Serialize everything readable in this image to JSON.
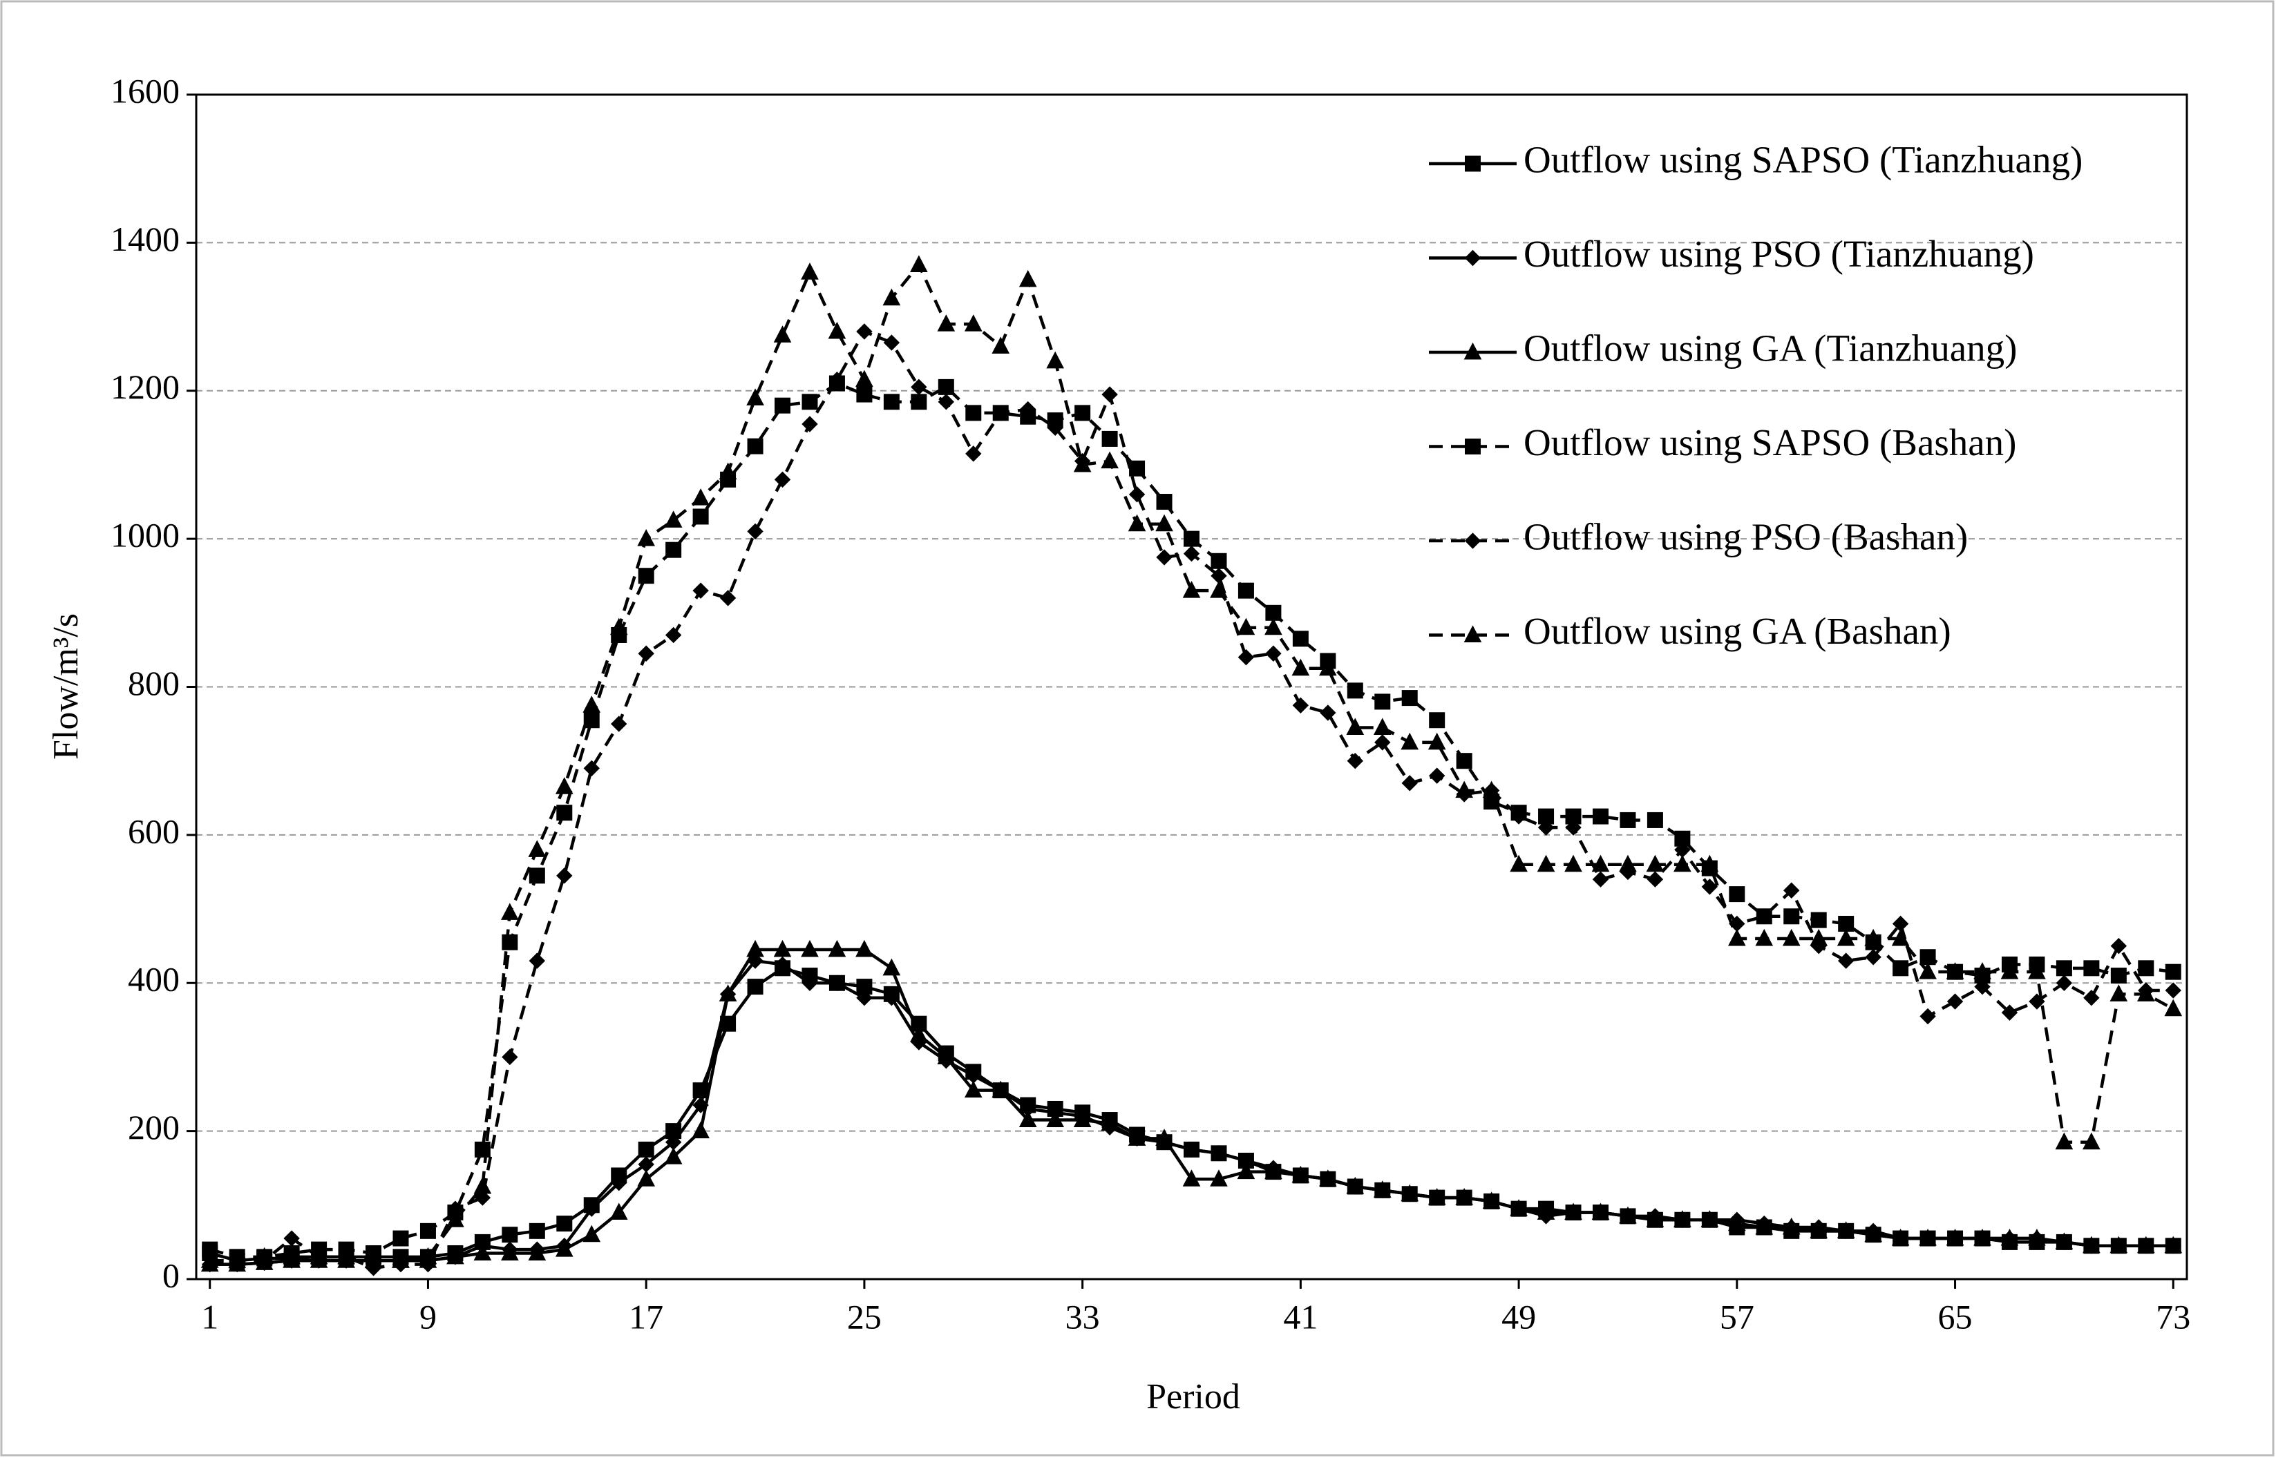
{
  "chart_data": {
    "type": "line",
    "x_label": "Period",
    "y_label": "Flow/m³/s",
    "x": [
      1,
      2,
      3,
      4,
      5,
      6,
      7,
      8,
      9,
      10,
      11,
      12,
      13,
      14,
      15,
      16,
      17,
      18,
      19,
      20,
      21,
      22,
      23,
      24,
      25,
      26,
      27,
      28,
      29,
      30,
      31,
      32,
      33,
      34,
      35,
      36,
      37,
      38,
      39,
      40,
      41,
      42,
      43,
      44,
      45,
      46,
      47,
      48,
      49,
      50,
      51,
      52,
      53,
      54,
      55,
      56,
      57,
      58,
      59,
      60,
      61,
      62,
      63,
      64,
      65,
      66,
      67,
      68,
      69,
      70,
      71,
      72,
      73
    ],
    "xlim": [
      0.5,
      73.5
    ],
    "xticks": [
      1,
      9,
      17,
      25,
      33,
      41,
      49,
      57,
      65,
      73
    ],
    "ylim": [
      0,
      1600
    ],
    "yticks": [
      0,
      200,
      400,
      600,
      800,
      1000,
      1200,
      1400,
      1600
    ],
    "grid": true,
    "legend": "upper right",
    "series": [
      {
        "name": "Outflow using SAPSO (Tianzhuang)",
        "color": "#000000",
        "marker": "square",
        "dashed": false,
        "values": [
          35,
          25,
          28,
          28,
          30,
          30,
          30,
          30,
          30,
          35,
          50,
          60,
          65,
          75,
          100,
          140,
          175,
          200,
          255,
          345,
          395,
          420,
          410,
          400,
          395,
          385,
          345,
          305,
          280,
          255,
          235,
          230,
          225,
          215,
          195,
          185,
          175,
          170,
          160,
          145,
          140,
          135,
          125,
          120,
          115,
          110,
          110,
          105,
          95,
          95,
          90,
          90,
          85,
          80,
          80,
          80,
          70,
          70,
          65,
          65,
          65,
          60,
          55,
          55,
          55,
          55,
          50,
          50,
          50,
          45,
          45,
          45,
          45
        ]
      },
      {
        "name": "Outflow using PSO (Tianzhuang)",
        "color": "#000000",
        "marker": "diamond",
        "dashed": false,
        "values": [
          20,
          20,
          22,
          25,
          25,
          25,
          25,
          25,
          25,
          30,
          45,
          40,
          40,
          45,
          95,
          130,
          155,
          185,
          235,
          385,
          430,
          425,
          400,
          400,
          380,
          380,
          320,
          295,
          275,
          255,
          230,
          225,
          220,
          205,
          190,
          185,
          175,
          170,
          160,
          150,
          140,
          135,
          125,
          120,
          115,
          110,
          110,
          105,
          95,
          85,
          90,
          90,
          85,
          85,
          80,
          80,
          80,
          75,
          70,
          70,
          65,
          65,
          55,
          55,
          55,
          55,
          55,
          55,
          50,
          45,
          45,
          45,
          45
        ]
      },
      {
        "name": "Outflow using GA (Tianzhuang)",
        "color": "#000000",
        "marker": "triangle",
        "dashed": false,
        "values": [
          20,
          20,
          22,
          25,
          25,
          25,
          25,
          25,
          25,
          30,
          35,
          35,
          35,
          40,
          60,
          90,
          135,
          165,
          200,
          385,
          445,
          445,
          445,
          445,
          445,
          420,
          330,
          300,
          255,
          255,
          215,
          215,
          215,
          210,
          190,
          190,
          135,
          135,
          145,
          145,
          140,
          135,
          125,
          120,
          115,
          110,
          110,
          105,
          95,
          90,
          90,
          90,
          85,
          80,
          80,
          80,
          75,
          70,
          70,
          65,
          65,
          60,
          55,
          55,
          55,
          55,
          55,
          55,
          50,
          45,
          45,
          45,
          45
        ]
      },
      {
        "name": "Outflow using SAPSO (Bashan)",
        "color": "#000000",
        "marker": "square",
        "dashed": true,
        "values": [
          40,
          30,
          30,
          35,
          40,
          40,
          35,
          55,
          65,
          90,
          175,
          455,
          545,
          630,
          755,
          870,
          950,
          985,
          1030,
          1080,
          1125,
          1180,
          1185,
          1210,
          1195,
          1185,
          1185,
          1205,
          1170,
          1170,
          1165,
          1160,
          1170,
          1135,
          1095,
          1050,
          1000,
          970,
          930,
          900,
          865,
          835,
          795,
          780,
          785,
          755,
          700,
          645,
          630,
          625,
          625,
          625,
          620,
          620,
          595,
          555,
          520,
          490,
          490,
          485,
          480,
          455,
          420,
          435,
          415,
          410,
          425,
          425,
          420,
          420,
          410,
          420,
          415
        ]
      },
      {
        "name": "Outflow using PSO (Bashan)",
        "color": "#000000",
        "marker": "diamond",
        "dashed": true,
        "values": [
          20,
          25,
          25,
          55,
          30,
          30,
          15,
          20,
          20,
          95,
          110,
          300,
          430,
          545,
          690,
          750,
          845,
          870,
          930,
          920,
          1010,
          1080,
          1155,
          1215,
          1280,
          1265,
          1205,
          1185,
          1115,
          1170,
          1175,
          1150,
          1105,
          1195,
          1060,
          975,
          980,
          950,
          840,
          845,
          775,
          765,
          700,
          725,
          670,
          680,
          655,
          660,
          625,
          610,
          610,
          540,
          550,
          540,
          580,
          530,
          480,
          490,
          525,
          450,
          430,
          435,
          480,
          355,
          375,
          395,
          360,
          375,
          400,
          380,
          450,
          390,
          390
        ]
      },
      {
        "name": "Outflow using GA (Bashan)",
        "color": "#000000",
        "marker": "triangle",
        "dashed": true,
        "values": [
          25,
          25,
          30,
          30,
          30,
          30,
          25,
          25,
          30,
          80,
          125,
          495,
          580,
          665,
          775,
          880,
          1000,
          1025,
          1055,
          1090,
          1190,
          1275,
          1360,
          1280,
          1215,
          1325,
          1370,
          1290,
          1290,
          1260,
          1350,
          1240,
          1100,
          1105,
          1020,
          1020,
          930,
          930,
          880,
          880,
          825,
          825,
          745,
          745,
          725,
          725,
          660,
          660,
          560,
          560,
          560,
          560,
          560,
          560,
          560,
          560,
          460,
          460,
          460,
          460,
          460,
          460,
          460,
          415,
          415,
          415,
          415,
          415,
          185,
          185,
          385,
          385,
          365
        ]
      }
    ]
  }
}
